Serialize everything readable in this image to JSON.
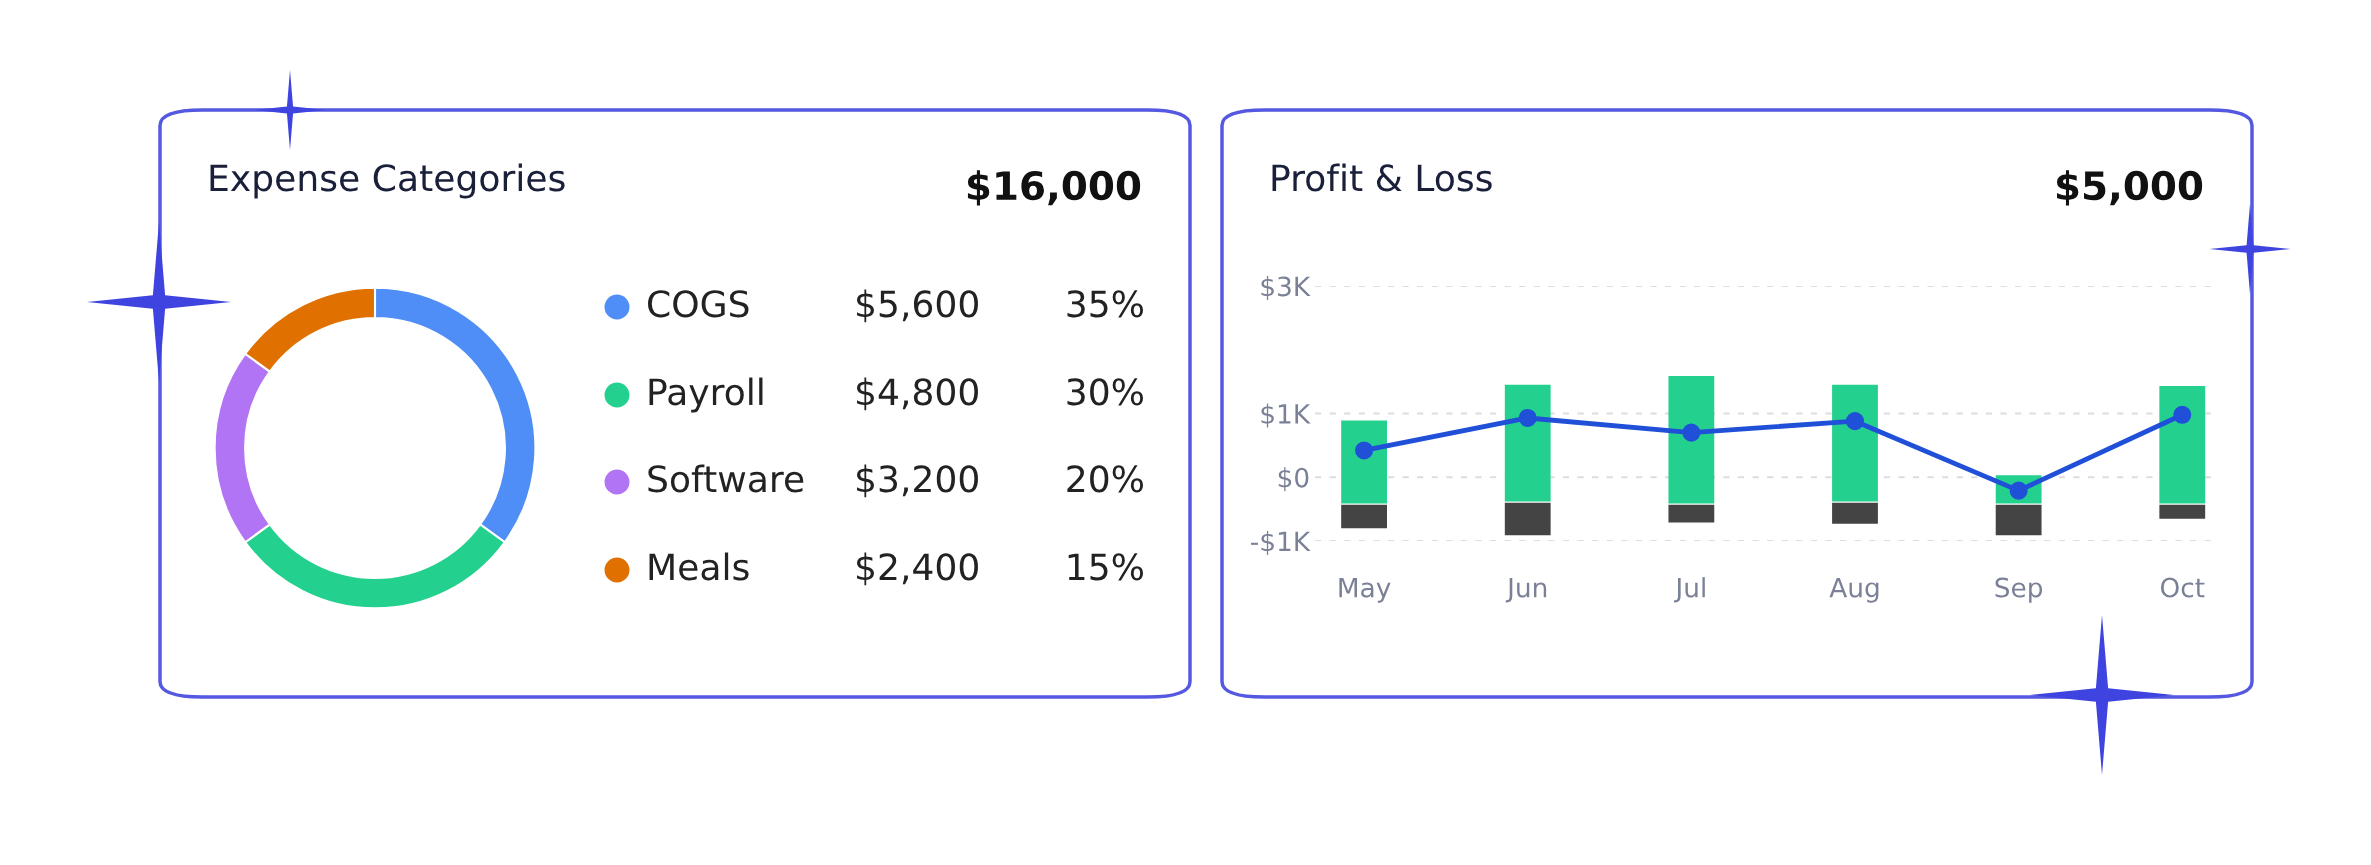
{
  "chart_data": [
    {
      "type": "donut",
      "title": "Expense Categories",
      "subtitle": "$16,000",
      "categories": [
        "COGS",
        "Payroll",
        "Software",
        "Meals"
      ],
      "values": [
        5600,
        4800,
        3200,
        2400
      ],
      "colors": [
        "#4f8ef7",
        "#24d08e",
        "#b074f4",
        "#e07000"
      ],
      "value_labels": [
        "$5,600",
        "$4,800",
        "$3,200",
        "$2,400"
      ],
      "annotations": [
        "35%",
        "30%",
        "20%",
        "15%"
      ],
      "legend": "right"
    },
    {
      "type": "bar",
      "title": "Profit & Loss",
      "subtitle": "$5,000",
      "categories": [
        "May",
        "Jun",
        "Jul",
        "Aug",
        "Sep",
        "Oct"
      ],
      "ylim": [
        -1000,
        3000
      ],
      "yticks": [
        {
          "value": -1000,
          "label": "-$1K"
        },
        {
          "value": 0,
          "label": "$0"
        },
        {
          "value": 1000,
          "label": "$1K"
        },
        {
          "value": 3000,
          "label": "$3K"
        }
      ],
      "grid": "y",
      "series": [
        {
          "type": "bar",
          "color": "#24d08e",
          "base": [
            -410,
            -380,
            -410,
            -380,
            -410,
            -410
          ],
          "values": [
            1300,
            1830,
            2000,
            1830,
            440,
            1840
          ]
        },
        {
          "type": "bar",
          "color": "#444444",
          "base": [
            -430,
            -400,
            -430,
            -400,
            -430,
            -430
          ],
          "values": [
            -370,
            -510,
            -280,
            -330,
            -480,
            -220
          ]
        },
        {
          "type": "line",
          "color": "#2050d8",
          "marker": "circle",
          "line_style": "solid",
          "values": [
            420,
            930,
            700,
            880,
            -210,
            980
          ]
        }
      ]
    }
  ]
}
